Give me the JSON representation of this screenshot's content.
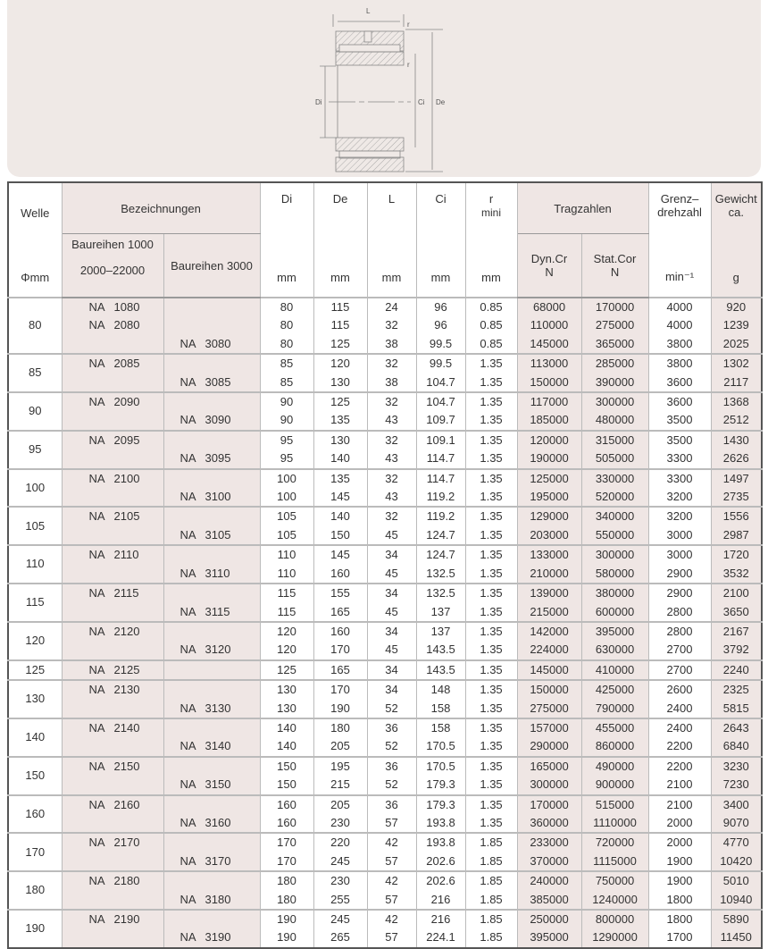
{
  "diagram": {
    "labels": {
      "L": "L",
      "r": "r",
      "Di": "Di",
      "Ci": "Ci",
      "De": "De"
    }
  },
  "header": {
    "welle": "Welle",
    "welle_unit": "Φmm",
    "bezeichnungen": "Bezeichnungen",
    "baureihen1000": "Baureihen 1000",
    "baureihen1000_sub": "2000–22000",
    "baureihen3000": "Baureihen 3000",
    "di": "Di",
    "de": "De",
    "l": "L",
    "ci": "Ci",
    "r": "r",
    "r_sub": "mini",
    "mm": "mm",
    "tragzahlen": "Tragzahlen",
    "dyn": "Dyn.Cr",
    "stat": "Stat.Cor",
    "n_unit": "N",
    "grenz1": "Grenz–",
    "grenz2": "drehzahl",
    "grenz_unit": "min⁻¹",
    "gewicht1": "Gewicht",
    "gewicht2": "ca.",
    "gewicht_unit": "g"
  },
  "colors": {
    "shade": "#efe6e4",
    "panel": "#efe9e6"
  },
  "groups": [
    {
      "welle": "80",
      "rows": [
        [
          "NA 1080",
          "",
          "80",
          "115",
          "24",
          "96",
          "0.85",
          "68000",
          "170000",
          "4000",
          "920"
        ],
        [
          "NA 2080",
          "",
          "80",
          "115",
          "32",
          "96",
          "0.85",
          "110000",
          "275000",
          "4000",
          "1239"
        ],
        [
          "",
          "NA 3080",
          "80",
          "125",
          "38",
          "99.5",
          "0.85",
          "145000",
          "365000",
          "3800",
          "2025"
        ]
      ]
    },
    {
      "welle": "85",
      "rows": [
        [
          "NA 2085",
          "",
          "85",
          "120",
          "32",
          "99.5",
          "1.35",
          "113000",
          "285000",
          "3800",
          "1302"
        ],
        [
          "",
          "NA 3085",
          "85",
          "130",
          "38",
          "104.7",
          "1.35",
          "150000",
          "390000",
          "3600",
          "2117"
        ]
      ]
    },
    {
      "welle": "90",
      "rows": [
        [
          "NA 2090",
          "",
          "90",
          "125",
          "32",
          "104.7",
          "1.35",
          "117000",
          "300000",
          "3600",
          "1368"
        ],
        [
          "",
          "NA 3090",
          "90",
          "135",
          "43",
          "109.7",
          "1.35",
          "185000",
          "480000",
          "3500",
          "2512"
        ]
      ]
    },
    {
      "welle": "95",
      "rows": [
        [
          "NA 2095",
          "",
          "95",
          "130",
          "32",
          "109.1",
          "1.35",
          "120000",
          "315000",
          "3500",
          "1430"
        ],
        [
          "",
          "NA 3095",
          "95",
          "140",
          "43",
          "114.7",
          "1.35",
          "190000",
          "505000",
          "3300",
          "2626"
        ]
      ]
    },
    {
      "welle": "100",
      "rows": [
        [
          "NA 2100",
          "",
          "100",
          "135",
          "32",
          "114.7",
          "1.35",
          "125000",
          "330000",
          "3300",
          "1497"
        ],
        [
          "",
          "NA 3100",
          "100",
          "145",
          "43",
          "119.2",
          "1.35",
          "195000",
          "520000",
          "3200",
          "2735"
        ]
      ]
    },
    {
      "welle": "105",
      "rows": [
        [
          "NA 2105",
          "",
          "105",
          "140",
          "32",
          "119.2",
          "1.35",
          "129000",
          "340000",
          "3200",
          "1556"
        ],
        [
          "",
          "NA 3105",
          "105",
          "150",
          "45",
          "124.7",
          "1.35",
          "203000",
          "550000",
          "3000",
          "2987"
        ]
      ]
    },
    {
      "welle": "110",
      "rows": [
        [
          "NA 2110",
          "",
          "110",
          "145",
          "34",
          "124.7",
          "1.35",
          "133000",
          "300000",
          "3000",
          "1720"
        ],
        [
          "",
          "NA 3110",
          "110",
          "160",
          "45",
          "132.5",
          "1.35",
          "210000",
          "580000",
          "2900",
          "3532"
        ]
      ]
    },
    {
      "welle": "115",
      "rows": [
        [
          "NA 2115",
          "",
          "115",
          "155",
          "34",
          "132.5",
          "1.35",
          "139000",
          "380000",
          "2900",
          "2100"
        ],
        [
          "",
          "NA 3115",
          "115",
          "165",
          "45",
          "137",
          "1.35",
          "215000",
          "600000",
          "2800",
          "3650"
        ]
      ]
    },
    {
      "welle": "120",
      "rows": [
        [
          "NA 2120",
          "",
          "120",
          "160",
          "34",
          "137",
          "1.35",
          "142000",
          "395000",
          "2800",
          "2167"
        ],
        [
          "",
          "NA 3120",
          "120",
          "170",
          "45",
          "143.5",
          "1.35",
          "224000",
          "630000",
          "2700",
          "3792"
        ]
      ]
    },
    {
      "welle": "125",
      "rows": [
        [
          "NA 2125",
          "",
          "125",
          "165",
          "34",
          "143.5",
          "1.35",
          "145000",
          "410000",
          "2700",
          "2240"
        ]
      ]
    },
    {
      "welle": "130",
      "rows": [
        [
          "NA 2130",
          "",
          "130",
          "170",
          "34",
          "148",
          "1.35",
          "150000",
          "425000",
          "2600",
          "2325"
        ],
        [
          "",
          "NA 3130",
          "130",
          "190",
          "52",
          "158",
          "1.35",
          "275000",
          "790000",
          "2400",
          "5815"
        ]
      ]
    },
    {
      "welle": "140",
      "rows": [
        [
          "NA 2140",
          "",
          "140",
          "180",
          "36",
          "158",
          "1.35",
          "157000",
          "455000",
          "2400",
          "2643"
        ],
        [
          "",
          "NA 3140",
          "140",
          "205",
          "52",
          "170.5",
          "1.35",
          "290000",
          "860000",
          "2200",
          "6840"
        ]
      ]
    },
    {
      "welle": "150",
      "rows": [
        [
          "NA 2150",
          "",
          "150",
          "195",
          "36",
          "170.5",
          "1.35",
          "165000",
          "490000",
          "2200",
          "3230"
        ],
        [
          "",
          "NA 3150",
          "150",
          "215",
          "52",
          "179.3",
          "1.35",
          "300000",
          "900000",
          "2100",
          "7230"
        ]
      ]
    },
    {
      "welle": "160",
      "rows": [
        [
          "NA 2160",
          "",
          "160",
          "205",
          "36",
          "179.3",
          "1.35",
          "170000",
          "515000",
          "2100",
          "3400"
        ],
        [
          "",
          "NA 3160",
          "160",
          "230",
          "57",
          "193.8",
          "1.35",
          "360000",
          "1110000",
          "2000",
          "9070"
        ]
      ]
    },
    {
      "welle": "170",
      "rows": [
        [
          "NA 2170",
          "",
          "170",
          "220",
          "42",
          "193.8",
          "1.85",
          "233000",
          "720000",
          "2000",
          "4770"
        ],
        [
          "",
          "NA 3170",
          "170",
          "245",
          "57",
          "202.6",
          "1.85",
          "370000",
          "1115000",
          "1900",
          "10420"
        ]
      ]
    },
    {
      "welle": "180",
      "rows": [
        [
          "NA 2180",
          "",
          "180",
          "230",
          "42",
          "202.6",
          "1.85",
          "240000",
          "750000",
          "1900",
          "5010"
        ],
        [
          "",
          "NA 3180",
          "180",
          "255",
          "57",
          "216",
          "1.85",
          "385000",
          "1240000",
          "1800",
          "10940"
        ]
      ]
    },
    {
      "welle": "190",
      "rows": [
        [
          "NA 2190",
          "",
          "190",
          "245",
          "42",
          "216",
          "1.85",
          "250000",
          "800000",
          "1800",
          "5890"
        ],
        [
          "",
          "NA 3190",
          "190",
          "265",
          "57",
          "224.1",
          "1.85",
          "395000",
          "1290000",
          "1700",
          "11450"
        ]
      ]
    }
  ]
}
